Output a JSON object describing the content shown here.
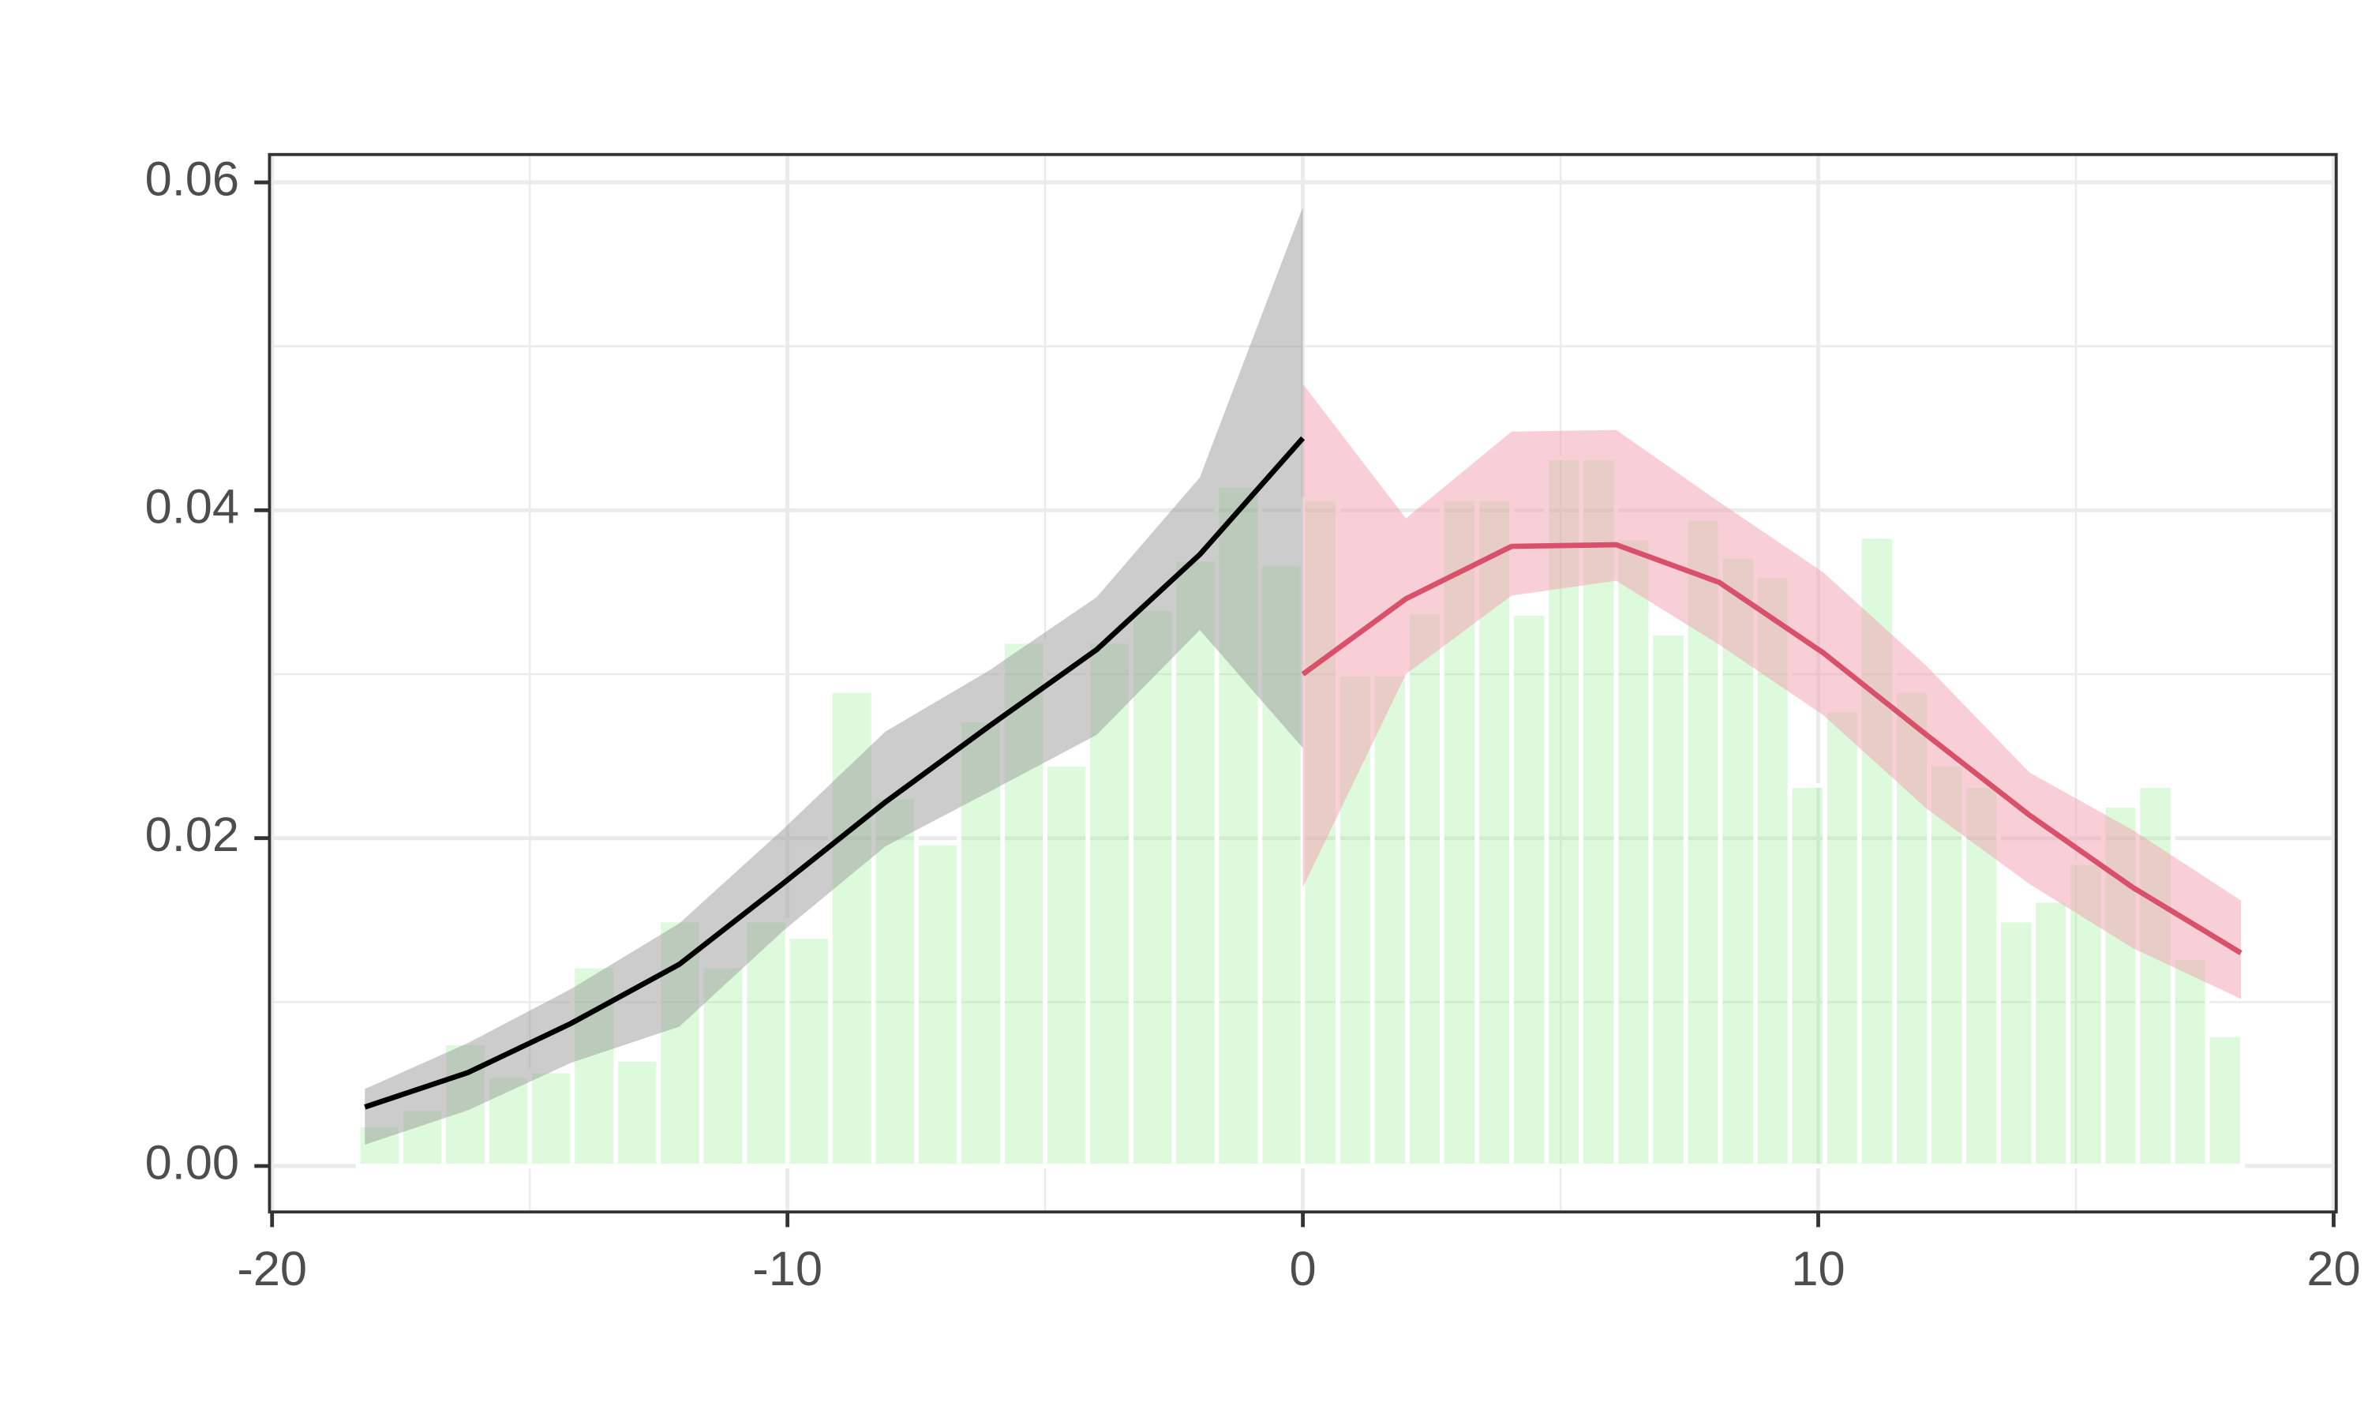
{
  "chart_data": {
    "type": "histogram",
    "bins": [
      -18.33,
      -17.5,
      -16.67,
      -15.83,
      -15,
      -14.17,
      -13.33,
      -12.5,
      -11.67,
      -10.83,
      -10,
      -9.17,
      -8.33,
      -7.5,
      -6.67,
      -5.83,
      -5,
      -4.17,
      -3.33,
      -2.5,
      -1.67,
      -0.83,
      0,
      0.68,
      1.35,
      2.03,
      2.7,
      3.38,
      4.05,
      4.73,
      5.4,
      6.08,
      6.75,
      7.43,
      8.1,
      8.78,
      9.45,
      10.13,
      10.8,
      11.48,
      12.15,
      12.83,
      13.5,
      14.18,
      14.85,
      15.53,
      16.2,
      16.88,
      17.55,
      18.23
    ],
    "counts": [
      0.0025,
      0.0035,
      0.0075,
      0.0055,
      0.0058,
      0.0122,
      0.0065,
      0.015,
      0.0122,
      0.015,
      0.014,
      0.029,
      0.0225,
      0.0197,
      0.0272,
      0.032,
      0.0245,
      0.032,
      0.034,
      0.037,
      0.0415,
      0.0367,
      0.0407,
      0.03,
      0.03,
      0.0338,
      0.0407,
      0.0407,
      0.0337,
      0.0432,
      0.0432,
      0.0383,
      0.0325,
      0.0395,
      0.0372,
      0.036,
      0.0232,
      0.0278,
      0.0384,
      0.029,
      0.0245,
      0.0232,
      0.015,
      0.0162,
      0.0185,
      0.022,
      0.0232,
      0.0127,
      0.008
    ],
    "color": "#90ee90",
    "lines": [
      {
        "color": "#000000",
        "band_color": "#999999",
        "x": [
          -18.2,
          -16.2,
          -14.2,
          -12.1,
          -10.1,
          -8.1,
          -6.1,
          -4.0,
          -2.0,
          0
        ],
        "values": [
          0.0036,
          0.0057,
          0.0087,
          0.0123,
          0.0172,
          0.0222,
          0.0268,
          0.0315,
          0.0373,
          0.0444
        ],
        "upper": [
          0.0047,
          0.0075,
          0.0108,
          0.0148,
          0.0205,
          0.0265,
          0.0302,
          0.0347,
          0.042,
          0.0585
        ],
        "lower": [
          0.0013,
          0.0034,
          0.0063,
          0.0085,
          0.0143,
          0.0195,
          0.0228,
          0.0263,
          0.0327,
          0.0255
        ]
      },
      {
        "color": "#d9506a",
        "band_color": "#f4a0b0",
        "x": [
          0,
          2.0,
          4.05,
          6.08,
          8.08,
          10.1,
          12.1,
          14.1,
          16.1,
          18.2
        ],
        "values": [
          0.03,
          0.0346,
          0.0378,
          0.0379,
          0.0356,
          0.0313,
          0.0263,
          0.0214,
          0.017,
          0.013
        ],
        "upper": [
          0.0477,
          0.0395,
          0.0448,
          0.0449,
          0.0405,
          0.0362,
          0.0305,
          0.024,
          0.0205,
          0.0162
        ],
        "lower": [
          0.017,
          0.03,
          0.0348,
          0.0357,
          0.0318,
          0.0275,
          0.0218,
          0.0172,
          0.0133,
          0.0102
        ]
      }
    ],
    "xlim": [
      -20.05,
      20.05
    ],
    "ylim": [
      -0.0028,
      0.0617
    ],
    "xticks": [
      -20,
      -10,
      0,
      10,
      20
    ],
    "yticks": [
      {
        "value": 0,
        "label": "0.00"
      },
      0.02,
      0.04,
      0.06
    ],
    "minor_xticks": [
      -15,
      -5,
      5,
      15
    ],
    "minor_yticks": [
      0.01,
      0.03,
      0.05
    ],
    "grid": true
  }
}
